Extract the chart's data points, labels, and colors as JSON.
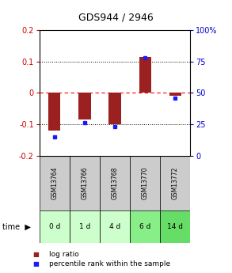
{
  "title": "GDS944 / 2946",
  "samples": [
    "GSM13764",
    "GSM13766",
    "GSM13768",
    "GSM13770",
    "GSM13772"
  ],
  "time_labels": [
    "0 d",
    "1 d",
    "4 d",
    "6 d",
    "14 d"
  ],
  "log_ratios": [
    -0.12,
    -0.085,
    -0.1,
    0.115,
    -0.01
  ],
  "percentiles": [
    15,
    26,
    23,
    78,
    46
  ],
  "ylim": [
    -0.2,
    0.2
  ],
  "yticks_left": [
    -0.2,
    -0.1,
    0,
    0.1,
    0.2
  ],
  "yticks_right": [
    0,
    25,
    50,
    75,
    100
  ],
  "bar_color": "#9B2020",
  "dot_color": "#1a1aff",
  "left_tick_color": "#cc0000",
  "right_tick_color": "#0000cc",
  "bar_width": 0.4,
  "sample_bg_color": "#cccccc",
  "time_bg_colors": [
    "#ccffcc",
    "#ccffcc",
    "#ccffcc",
    "#88ee88",
    "#66dd66"
  ],
  "legend_bar_color": "#9B2020",
  "legend_dot_color": "#1a1aff"
}
